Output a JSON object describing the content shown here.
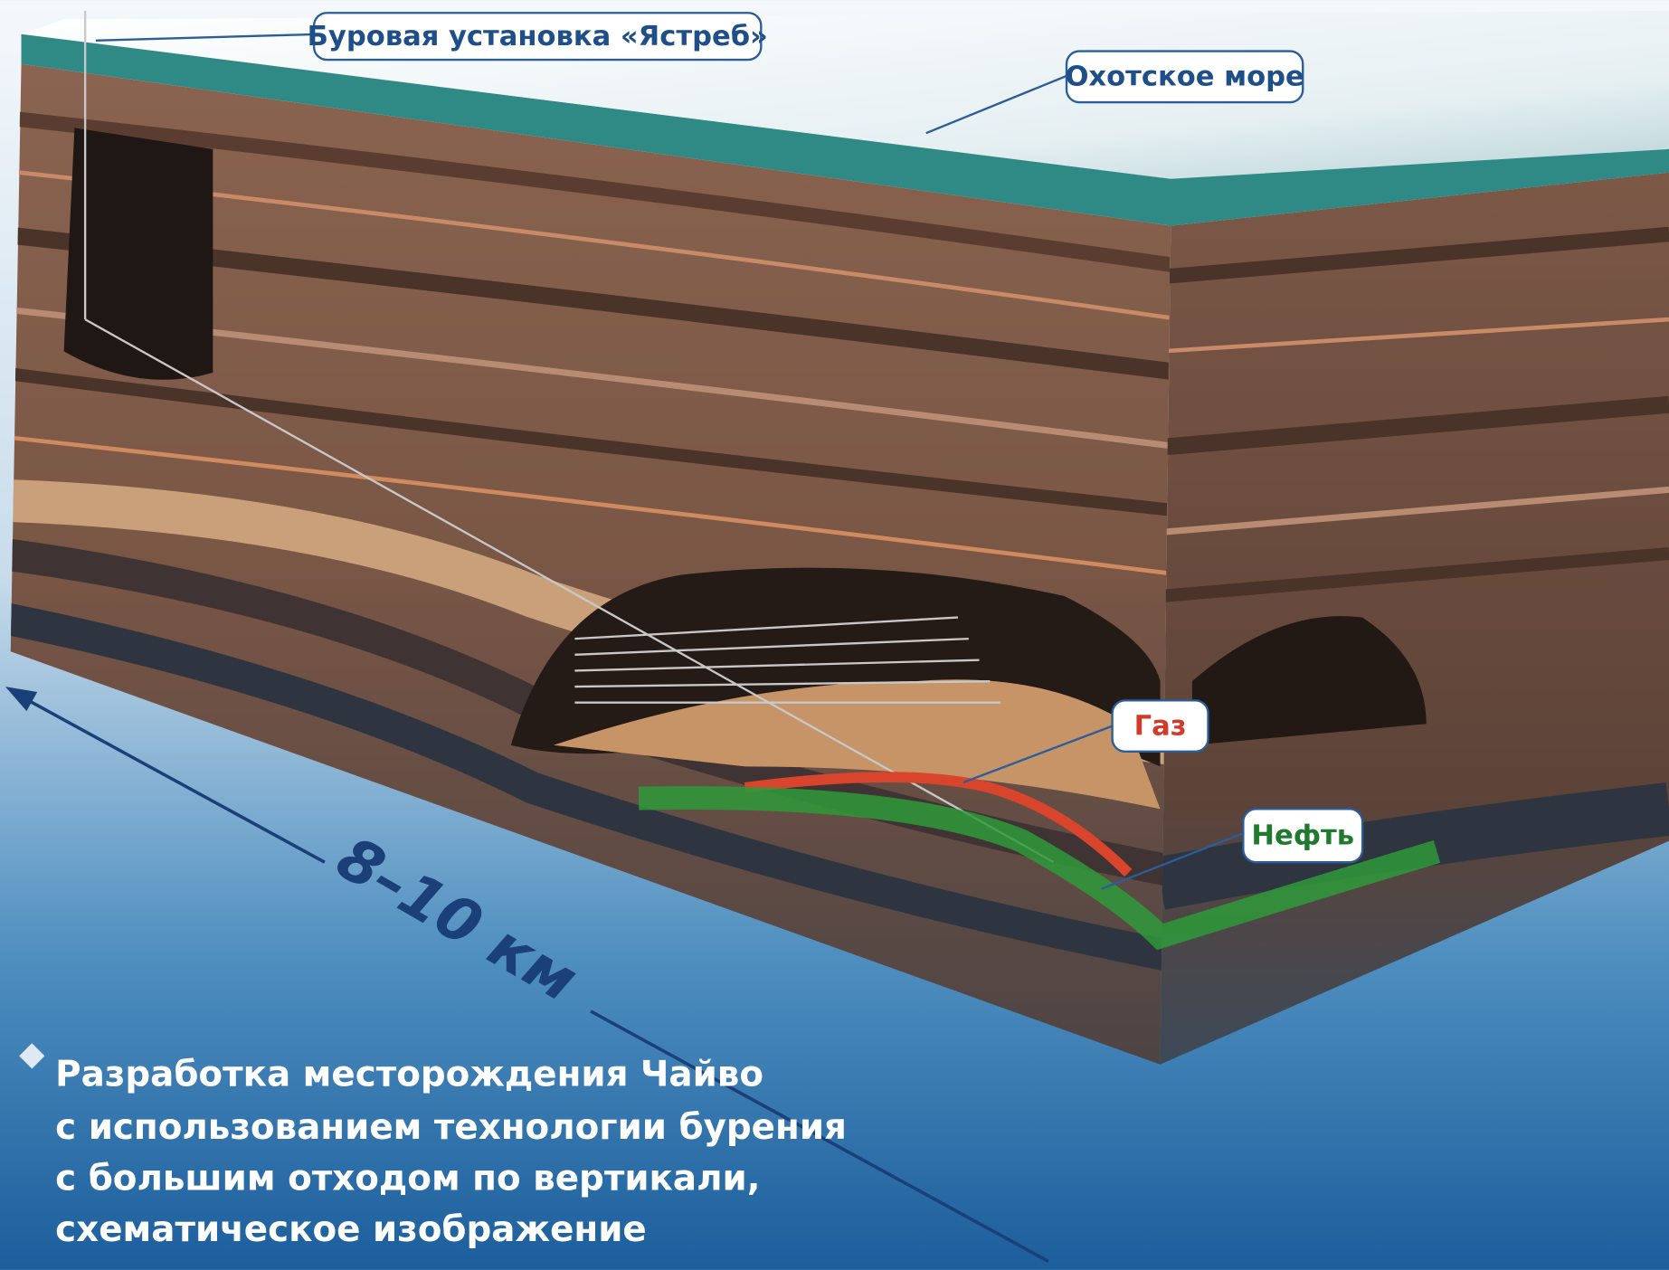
{
  "labels": {
    "rig": "Буровая установка «Ястреб»",
    "sea": "Охотское море",
    "gas": "Газ",
    "oil": "Нефть"
  },
  "distance": "8–10 км",
  "caption": [
    "Разработка месторождения Чайво",
    "с использованием технологии бурения",
    "с большим отходом по вертикали,",
    "схематическое изображение"
  ]
}
